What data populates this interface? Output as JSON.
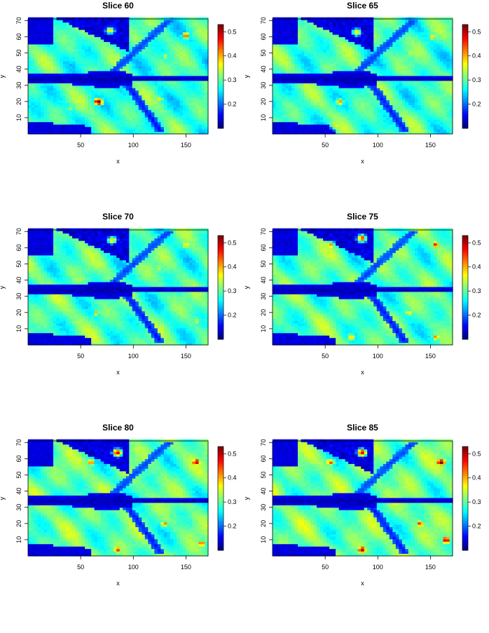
{
  "chart_data": [
    {
      "type": "heatmap",
      "title": "Slice 60",
      "xlabel": "x",
      "ylabel": "y",
      "xlim": [
        0,
        171
      ],
      "ylim": [
        0,
        71
      ],
      "x_ticks": [
        50,
        100,
        150
      ],
      "y_ticks": [
        10,
        20,
        30,
        40,
        50,
        60,
        70
      ],
      "colorbar": {
        "range": [
          0.1,
          0.53
        ],
        "ticks": [
          0.2,
          0.3,
          0.4,
          0.5
        ],
        "tick_labels": [
          "0.2",
          "0.3",
          "0.4",
          "0.5"
        ]
      },
      "hotspots": [
        {
          "x": 67,
          "y": 20,
          "value": 0.53
        },
        {
          "x": 150,
          "y": 61,
          "value": 0.42
        },
        {
          "x": 78,
          "y": 64,
          "value": 0.36
        },
        {
          "x": 130,
          "y": 48,
          "value": 0.35
        },
        {
          "x": 40,
          "y": 16,
          "value": 0.33
        },
        {
          "x": 125,
          "y": 22,
          "value": 0.35
        }
      ]
    },
    {
      "type": "heatmap",
      "title": "Slice 65",
      "xlabel": "x",
      "ylabel": "y",
      "xlim": [
        0,
        171
      ],
      "ylim": [
        0,
        71
      ],
      "x_ticks": [
        50,
        100,
        150
      ],
      "y_ticks": [
        10,
        20,
        30,
        40,
        50,
        60,
        70
      ],
      "colorbar": {
        "range": [
          0.1,
          0.53
        ],
        "ticks": [
          0.2,
          0.3,
          0.4,
          0.5
        ],
        "tick_labels": [
          "0.2",
          "0.3",
          "0.4",
          "0.5"
        ]
      },
      "hotspots": [
        {
          "x": 64,
          "y": 20,
          "value": 0.4
        },
        {
          "x": 80,
          "y": 63,
          "value": 0.37
        },
        {
          "x": 152,
          "y": 60,
          "value": 0.38
        },
        {
          "x": 60,
          "y": 5,
          "value": 0.38
        },
        {
          "x": 130,
          "y": 50,
          "value": 0.34
        },
        {
          "x": 120,
          "y": 20,
          "value": 0.33
        }
      ]
    },
    {
      "type": "heatmap",
      "title": "Slice 70",
      "xlabel": "x",
      "ylabel": "y",
      "xlim": [
        0,
        171
      ],
      "ylim": [
        0,
        71
      ],
      "x_ticks": [
        50,
        100,
        150
      ],
      "y_ticks": [
        10,
        20,
        30,
        40,
        50,
        60,
        70
      ],
      "colorbar": {
        "range": [
          0.1,
          0.53
        ],
        "ticks": [
          0.2,
          0.3,
          0.4,
          0.5
        ],
        "tick_labels": [
          "0.2",
          "0.3",
          "0.4",
          "0.5"
        ]
      },
      "hotspots": [
        {
          "x": 80,
          "y": 65,
          "value": 0.38
        },
        {
          "x": 150,
          "y": 62,
          "value": 0.38
        },
        {
          "x": 65,
          "y": 20,
          "value": 0.37
        },
        {
          "x": 65,
          "y": 5,
          "value": 0.36
        },
        {
          "x": 125,
          "y": 48,
          "value": 0.34
        },
        {
          "x": 160,
          "y": 15,
          "value": 0.34
        }
      ]
    },
    {
      "type": "heatmap",
      "title": "Slice 75",
      "xlabel": "x",
      "ylabel": "y",
      "xlim": [
        0,
        171
      ],
      "ylim": [
        0,
        71
      ],
      "x_ticks": [
        50,
        100,
        150
      ],
      "y_ticks": [
        10,
        20,
        30,
        40,
        50,
        60,
        70
      ],
      "colorbar": {
        "range": [
          0.1,
          0.53
        ],
        "ticks": [
          0.2,
          0.3,
          0.4,
          0.5
        ],
        "tick_labels": [
          "0.2",
          "0.3",
          "0.4",
          "0.5"
        ]
      },
      "hotspots": [
        {
          "x": 85,
          "y": 66,
          "value": 0.44
        },
        {
          "x": 155,
          "y": 62,
          "value": 0.44
        },
        {
          "x": 55,
          "y": 62,
          "value": 0.4
        },
        {
          "x": 75,
          "y": 5,
          "value": 0.4
        },
        {
          "x": 155,
          "y": 5,
          "value": 0.4
        },
        {
          "x": 130,
          "y": 20,
          "value": 0.38
        }
      ]
    },
    {
      "type": "heatmap",
      "title": "Slice 80",
      "xlabel": "x",
      "ylabel": "y",
      "xlim": [
        0,
        171
      ],
      "ylim": [
        0,
        71
      ],
      "x_ticks": [
        50,
        100,
        150
      ],
      "y_ticks": [
        10,
        20,
        30,
        40,
        50,
        60,
        70
      ],
      "colorbar": {
        "range": [
          0.1,
          0.53
        ],
        "ticks": [
          0.2,
          0.3,
          0.4,
          0.5
        ],
        "tick_labels": [
          "0.2",
          "0.3",
          "0.4",
          "0.5"
        ]
      },
      "hotspots": [
        {
          "x": 160,
          "y": 58,
          "value": 0.5
        },
        {
          "x": 85,
          "y": 64,
          "value": 0.47
        },
        {
          "x": 60,
          "y": 58,
          "value": 0.42
        },
        {
          "x": 85,
          "y": 4,
          "value": 0.45
        },
        {
          "x": 165,
          "y": 8,
          "value": 0.44
        },
        {
          "x": 130,
          "y": 20,
          "value": 0.4
        }
      ]
    },
    {
      "type": "heatmap",
      "title": "Slice 85",
      "xlabel": "x",
      "ylabel": "y",
      "xlim": [
        0,
        171
      ],
      "ylim": [
        0,
        71
      ],
      "x_ticks": [
        50,
        100,
        150
      ],
      "y_ticks": [
        10,
        20,
        30,
        40,
        50,
        60,
        70
      ],
      "colorbar": {
        "range": [
          0.1,
          0.53
        ],
        "ticks": [
          0.2,
          0.3,
          0.4,
          0.5
        ],
        "tick_labels": [
          "0.2",
          "0.3",
          "0.4",
          "0.5"
        ]
      },
      "hotspots": [
        {
          "x": 160,
          "y": 58,
          "value": 0.53
        },
        {
          "x": 85,
          "y": 64,
          "value": 0.48
        },
        {
          "x": 55,
          "y": 58,
          "value": 0.44
        },
        {
          "x": 85,
          "y": 4,
          "value": 0.5
        },
        {
          "x": 165,
          "y": 10,
          "value": 0.5
        },
        {
          "x": 140,
          "y": 20,
          "value": 0.44
        }
      ]
    }
  ]
}
